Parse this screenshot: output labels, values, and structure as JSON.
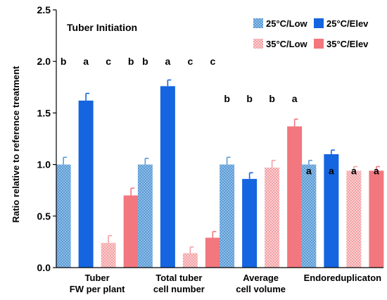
{
  "chart_data": {
    "type": "bar",
    "title": "Tuber Initiation",
    "ylabel": "Ratio relative to reference treatment",
    "xlabel": "",
    "ylim": [
      0,
      2.5
    ],
    "yticks": [
      "0.0",
      "0.5",
      "1.0",
      "1.5",
      "2.0",
      "2.5"
    ],
    "grid": false,
    "legend_position": "top-right",
    "categories": [
      [
        "Tuber",
        "FW per plant"
      ],
      [
        "Total tuber",
        "cell number"
      ],
      [
        "Average",
        "cell volume"
      ],
      [
        "Endoreduplicaton"
      ]
    ],
    "series": [
      {
        "name": "25°C/Low",
        "color": "#5b9bd5",
        "pattern": "checker-light",
        "values": [
          1.0,
          1.0,
          1.0,
          1.0
        ],
        "errors": [
          0.07,
          0.06,
          0.07,
          0.04
        ],
        "letters": [
          "b",
          "b",
          "b",
          "a"
        ]
      },
      {
        "name": "25°C/Elev",
        "color": "#1565e0",
        "pattern": "solid",
        "values": [
          1.62,
          1.76,
          0.86,
          1.1
        ],
        "errors": [
          0.07,
          0.06,
          0.06,
          0.04
        ],
        "letters": [
          "a",
          "a",
          "b",
          "a"
        ]
      },
      {
        "name": "35°C/Low",
        "color": "#f4a0a4",
        "pattern": "checker-light",
        "values": [
          0.24,
          0.14,
          0.97,
          0.94
        ],
        "errors": [
          0.07,
          0.06,
          0.07,
          0.04
        ],
        "letters": [
          "c",
          "c",
          "b",
          "a"
        ]
      },
      {
        "name": "35°C/Elev",
        "color": "#f2777e",
        "pattern": "solid",
        "values": [
          0.7,
          0.29,
          1.37,
          0.94
        ],
        "errors": [
          0.07,
          0.06,
          0.07,
          0.04
        ],
        "letters": [
          "b",
          "c",
          "a",
          "a"
        ]
      }
    ],
    "letter_heights": [
      2.0,
      2.0,
      1.64,
      0.94
    ]
  }
}
